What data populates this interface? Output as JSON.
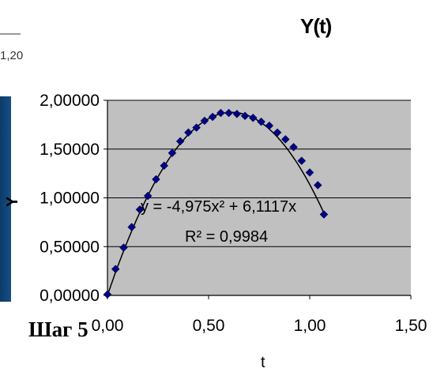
{
  "fragment": {
    "corner_value": "1,20"
  },
  "footer": {
    "step_label": "Шаг 5"
  },
  "chart_data": {
    "type": "scatter",
    "title": "Y(t)",
    "xlabel": "t",
    "ylabel": "Y",
    "xlim": [
      0,
      1.5
    ],
    "ylim": [
      0,
      2
    ],
    "xticks": [
      "0,00",
      "0,50",
      "1,00",
      "1,50"
    ],
    "yticks": [
      "0,00000",
      "0,50000",
      "1,00000",
      "1,50000",
      "2,00000"
    ],
    "xtick_values": [
      0,
      0.5,
      1.0,
      1.5
    ],
    "ytick_values": [
      0,
      0.5,
      1.0,
      1.5,
      2.0
    ],
    "grid": "horizontal",
    "plot_background": "#c0c0c0",
    "marker_color": "#000080",
    "trendline_color": "#000000",
    "trendline": {
      "a": -4.975,
      "b": 6.1117
    },
    "annotations": [
      "y = -4,975x² + 6,1117x",
      "R² = 0,9984"
    ],
    "series": [
      {
        "x": [
          0.0,
          0.04,
          0.08,
          0.12,
          0.16,
          0.2,
          0.24,
          0.28,
          0.32,
          0.36,
          0.4,
          0.44,
          0.48,
          0.52,
          0.56,
          0.6,
          0.64,
          0.68,
          0.72,
          0.76,
          0.8,
          0.84,
          0.88,
          0.92,
          0.96,
          1.0,
          1.04,
          1.07
        ],
        "y": [
          0.01,
          0.27,
          0.49,
          0.7,
          0.88,
          1.02,
          1.19,
          1.33,
          1.46,
          1.58,
          1.67,
          1.72,
          1.79,
          1.83,
          1.87,
          1.87,
          1.86,
          1.84,
          1.82,
          1.78,
          1.74,
          1.67,
          1.6,
          1.52,
          1.38,
          1.26,
          1.13,
          0.83
        ]
      }
    ]
  }
}
